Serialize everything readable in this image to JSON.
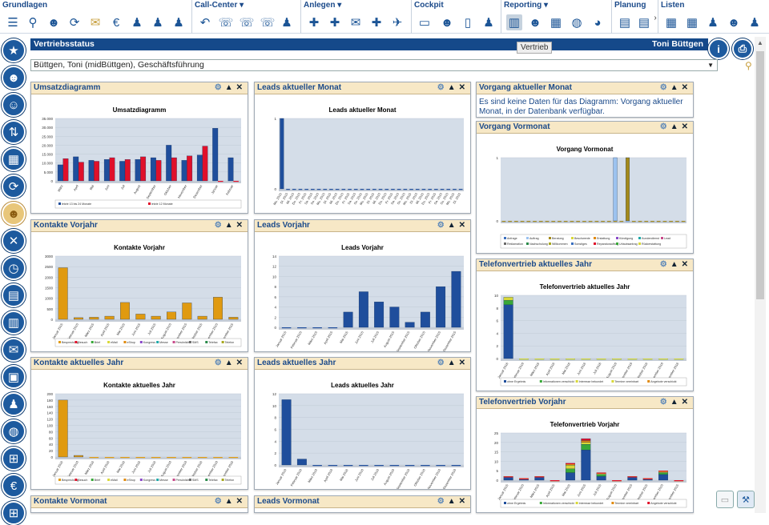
{
  "ribbon": {
    "groups": [
      {
        "title": "Grundlagen",
        "left": 0
      },
      {
        "title": "Call-Center ▾",
        "left": 0
      },
      {
        "title": "Anlegen ▾",
        "left": 0
      },
      {
        "title": "Cockpit",
        "left": 0
      },
      {
        "title": "Reporting ▾",
        "left": 0
      },
      {
        "title": "Planung",
        "left": 0
      },
      {
        "title": "Listen",
        "left": 0
      }
    ]
  },
  "header": {
    "title": "Vertriebsstatus",
    "user": "Toni Büttgen"
  },
  "tooltip": "Vertrieb",
  "selector": {
    "value": "Büttgen, Toni (midBüttgen), Geschäftsführung"
  },
  "panels": {
    "umsatz": {
      "title": "Umsatzdiagramm"
    },
    "leads_akt_monat": {
      "title": "Leads aktueller Monat"
    },
    "vorgang_akt": {
      "title": "Vorgang aktueller Monat",
      "message": "Es sind keine Daten für das Diagramm: Vorgang aktueller Monat, in der Datenbank verfügbar."
    },
    "vorgang_vormonat": {
      "title": "Vorgang Vormonat"
    },
    "kontakte_vorjahr": {
      "title": "Kontakte Vorjahr"
    },
    "leads_vorjahr": {
      "title": "Leads Vorjahr"
    },
    "telefon_akt": {
      "title": "Telefonvertrieb aktuelles Jahr"
    },
    "kontakte_akt": {
      "title": "Kontakte aktuelles Jahr"
    },
    "leads_akt": {
      "title": "Leads aktuelles Jahr"
    },
    "telefon_vorjahr": {
      "title": "Telefonvertrieb Vorjahr"
    },
    "kontakte_vormonat": {
      "title": "Kontakte Vormonat"
    },
    "leads_vormonat": {
      "title": "Leads Vormonat"
    }
  },
  "chart_data": [
    {
      "id": "umsatz",
      "type": "bar",
      "title": "Umsatzdiagramm",
      "ylim": [
        0,
        35000
      ],
      "yticks": [
        "0",
        "5.000",
        "10.000",
        "15.000",
        "20.000",
        "25.000",
        "30.000",
        "35.000"
      ],
      "categories": [
        "März",
        "April",
        "Mai",
        "Juni",
        "Juli",
        "August",
        "September",
        "Oktober",
        "November",
        "Dezember",
        "Januar",
        "Februar"
      ],
      "series": [
        {
          "name": "letzte 13 bis 24 Monate",
          "color": "#1f4e9c",
          "values": [
            9000,
            13500,
            11500,
            12000,
            11000,
            12000,
            13000,
            20000,
            11500,
            14500,
            29500,
            13000
          ]
        },
        {
          "name": "letzte 12 Monate",
          "color": "#e0102a",
          "values": [
            12500,
            10500,
            11000,
            13000,
            12000,
            13500,
            11500,
            13000,
            14000,
            19500,
            0,
            0
          ]
        }
      ]
    },
    {
      "id": "leads_akt_monat",
      "type": "bar",
      "title": "Leads aktueller Monat",
      "ylim": [
        0,
        1
      ],
      "yticks": [
        "0",
        "1"
      ],
      "categories": [
        "Mo. 2015",
        "Di. 2015",
        "Mi. 2015",
        "Do. 2015",
        "Fr. 2015",
        "Sa. 2015",
        "So. 2015",
        "Mo. 2015",
        "Di. 2015",
        "Mi. 2015",
        "Do. 2015",
        "Fr. 2015",
        "Sa. 2015",
        "So. 2015",
        "Mo. 2015",
        "Di. 2015",
        "Mi. 2015",
        "Do. 2015",
        "Fr. 2015",
        "Sa. 2015",
        "So. 2015",
        "Mo. 2015",
        "Di. 2015",
        "Mi. 2015",
        "Do. 2015",
        "Fr. 2015",
        "Sa. 2015",
        "So. 2015",
        "Mo. 2015",
        "Di. 2015"
      ],
      "series": [
        {
          "name": "",
          "color": "#1f4e9c",
          "values": [
            1,
            0,
            0,
            0,
            0,
            0,
            0,
            0,
            0,
            0,
            0,
            0,
            0,
            0,
            0,
            0,
            0,
            0,
            0,
            0,
            0,
            0,
            0,
            0,
            0,
            0,
            0,
            0,
            0,
            0
          ]
        }
      ]
    },
    {
      "id": "vorgang_vormonat",
      "type": "bar",
      "title": "Vorgang Vormonat",
      "ylim": [
        0,
        1
      ],
      "yticks": [
        "0",
        "1"
      ],
      "categories": [
        "",
        "",
        "",
        "",
        "",
        "",
        "",
        "",
        "",
        "",
        "",
        "",
        "",
        "",
        "",
        "",
        "",
        "",
        "",
        "",
        "",
        "",
        "",
        "",
        "",
        "",
        "",
        "",
        "",
        ""
      ],
      "series": [
        {
          "name": "Anfrage",
          "color": "#3b6fbf",
          "values": [
            0,
            0,
            0,
            0,
            0,
            0,
            0,
            0,
            0,
            0,
            0,
            0,
            0,
            0,
            0,
            0,
            0,
            0,
            0,
            0,
            0,
            0,
            0,
            0,
            0,
            0,
            0,
            0,
            0,
            0
          ]
        },
        {
          "name": "Auftrag",
          "color": "#9cc2ef",
          "values": [
            0,
            0,
            0,
            0,
            0,
            0,
            0,
            0,
            0,
            0,
            0,
            0,
            0,
            0,
            0,
            0,
            0,
            0,
            1,
            0,
            0,
            0,
            0,
            0,
            0,
            0,
            0,
            0,
            0,
            0
          ]
        },
        {
          "name": "Beratung",
          "color": "#a58a1a",
          "values": [
            0,
            0,
            0,
            0,
            0,
            0,
            0,
            0,
            0,
            0,
            0,
            0,
            0,
            0,
            0,
            0,
            0,
            0,
            0,
            0,
            1,
            0,
            0,
            0,
            0,
            0,
            0,
            0,
            0,
            0
          ]
        }
      ],
      "legend": [
        "Anfrage",
        "Auftrag",
        "Beratung",
        "Beschwerde",
        "Erstattung",
        "Kündigung",
        "Kundendienst",
        "Lead",
        "Reklamation",
        "Nachschulung",
        "Willkommen",
        "Sonstiges",
        "Reparaturauftrag",
        "Urlaubsantrag",
        "Rückerstattung"
      ]
    },
    {
      "id": "kontakte_vorjahr",
      "type": "bar",
      "title": "Kontakte Vorjahr",
      "ylim": [
        0,
        3000
      ],
      "yticks": [
        "0",
        "500",
        "1000",
        "1500",
        "2000",
        "2500",
        "3000"
      ],
      "categories": [
        "Januar 2015",
        "Februar 2015",
        "März 2015",
        "April 2015",
        "Mai 2015",
        "Juni 2015",
        "Juli 2015",
        "August 2015",
        "September 2015",
        "Oktober 2015",
        "November 2015",
        "Dezember 2015"
      ],
      "series": [
        {
          "name": "",
          "color": "#e09a10",
          "values": [
            2450,
            80,
            100,
            150,
            800,
            250,
            150,
            350,
            780,
            150,
            1050,
            100
          ]
        }
      ],
      "legend": [
        "Besprechung",
        "Besuch",
        "Brief",
        "eMail",
        "eShop",
        "Kongress",
        "Messe",
        "Persönlich",
        "SMS",
        "Telefax",
        "Telefon"
      ]
    },
    {
      "id": "leads_vorjahr",
      "type": "bar",
      "title": "Leads Vorjahr",
      "ylim": [
        0,
        14
      ],
      "yticks": [
        "0",
        "2",
        "4",
        "6",
        "8",
        "10",
        "12",
        "14"
      ],
      "categories": [
        "Januar 2015",
        "Februar 2015",
        "März 2015",
        "April 2015",
        "Mai 2015",
        "Juni 2015",
        "Juli 2015",
        "August 2015",
        "September 2015",
        "Oktober 2015",
        "November 2015",
        "Dezember 2015"
      ],
      "series": [
        {
          "name": "",
          "color": "#1f4e9c",
          "values": [
            0,
            0,
            0,
            0,
            3,
            7,
            5,
            4,
            1,
            3,
            8,
            11
          ]
        }
      ]
    },
    {
      "id": "telefon_akt",
      "type": "bar",
      "title": "Telefonvertrieb aktuelles Jahr",
      "ylim": [
        0,
        10
      ],
      "yticks": [
        "0",
        "2",
        "4",
        "6",
        "8",
        "10"
      ],
      "categories": [
        "Januar 2016",
        "Februar 2016",
        "März 2016",
        "April 2016",
        "Mai 2016",
        "Juni 2016",
        "Juli 2016",
        "August 2016",
        "September 2016",
        "Oktober 2016",
        "November 2016",
        "Dezember 2016"
      ],
      "series": [
        {
          "name": "ohne Ergebnis",
          "color": "#1f4e9c",
          "values": [
            8.5,
            0,
            0,
            0,
            0,
            0,
            0,
            0,
            0,
            0,
            0,
            0
          ]
        },
        {
          "name": "Informationen verschickt",
          "color": "#38a838",
          "values": [
            0.7,
            0,
            0,
            0,
            0,
            0,
            0,
            0,
            0,
            0,
            0,
            0
          ]
        },
        {
          "name": "Interesse bekundet",
          "color": "#d8d838",
          "values": [
            0.5,
            0,
            0,
            0,
            0,
            0,
            0,
            0,
            0,
            0,
            0,
            0
          ]
        }
      ],
      "legend": [
        "ohne Ergebnis",
        "Informationen verschickt",
        "Interesse bekundet",
        "Termine vereinbart",
        "Angebote verschickt"
      ]
    },
    {
      "id": "kontakte_akt",
      "type": "bar",
      "title": "Kontakte aktuelles Jahr",
      "ylim": [
        0,
        200
      ],
      "yticks": [
        "0",
        "20",
        "40",
        "60",
        "80",
        "100",
        "120",
        "140",
        "160",
        "180",
        "200"
      ],
      "categories": [
        "Januar 2016",
        "Februar 2016",
        "März 2016",
        "April 2016",
        "Mai 2016",
        "Juni 2016",
        "Juli 2016",
        "August 2016",
        "September 2016",
        "Oktober 2016",
        "November 2016",
        "Dezember 2016"
      ],
      "series": [
        {
          "name": "",
          "color": "#e09a10",
          "values": [
            180,
            5,
            0,
            0,
            0,
            0,
            0,
            0,
            0,
            0,
            0,
            0
          ]
        }
      ],
      "legend": [
        "Besprechung",
        "Besuch",
        "Brief",
        "eMail",
        "eShop",
        "Kongress",
        "Messe",
        "Persönlich",
        "SMS",
        "Telefax",
        "Telefon"
      ]
    },
    {
      "id": "leads_akt",
      "type": "bar",
      "title": "Leads aktuelles Jahr",
      "ylim": [
        0,
        12
      ],
      "yticks": [
        "0",
        "2",
        "4",
        "6",
        "8",
        "10",
        "12"
      ],
      "categories": [
        "Januar 2016",
        "Februar 2016",
        "März 2016",
        "April 2016",
        "Mai 2016",
        "Juni 2016",
        "Juli 2016",
        "August 2016",
        "September 2016",
        "Oktober 2016",
        "November 2016",
        "Dezember 2016"
      ],
      "series": [
        {
          "name": "",
          "color": "#1f4e9c",
          "values": [
            11,
            1,
            0,
            0,
            0,
            0,
            0,
            0,
            0,
            0,
            0,
            0
          ]
        }
      ]
    },
    {
      "id": "telefon_vorjahr",
      "type": "bar",
      "title": "Telefonvertrieb Vorjahr",
      "ylim": [
        0,
        25
      ],
      "yticks": [
        "0",
        "5",
        "10",
        "15",
        "20",
        "25"
      ],
      "categories": [
        "Januar 2015",
        "Februar 2015",
        "März 2015",
        "April 2015",
        "Mai 2015",
        "Juni 2015",
        "Juli 2015",
        "August 2015",
        "September 2015",
        "Oktober 2015",
        "November 2015",
        "Dezember 2015"
      ],
      "series": [
        {
          "name": "ohne Ergebnis",
          "color": "#1f4e9c",
          "values": [
            2,
            1,
            2,
            0,
            4,
            16,
            2,
            0,
            2,
            1,
            3,
            0
          ]
        },
        {
          "name": "Informationen verschickt",
          "color": "#38a838",
          "values": [
            0,
            0,
            0,
            0,
            2,
            3,
            1,
            0,
            0,
            0,
            1,
            0
          ]
        },
        {
          "name": "Interesse bekundet",
          "color": "#d8d838",
          "values": [
            0,
            0,
            0,
            0,
            2,
            1,
            1,
            0,
            0,
            0,
            1,
            0
          ]
        },
        {
          "name": "Termine vereinbart",
          "color": "#e08a10",
          "values": [
            0,
            0,
            0,
            0,
            1,
            1,
            0,
            0,
            0,
            0,
            0,
            0
          ]
        },
        {
          "name": "Angebote verschickt",
          "color": "#e0102a",
          "values": [
            0,
            0,
            0,
            0,
            0,
            1,
            0,
            0,
            0,
            0,
            0,
            0
          ]
        }
      ]
    }
  ],
  "sidebar_icons": [
    "star-icon",
    "user-icon",
    "user-circle-icon",
    "arrows-icon",
    "building-icon",
    "sync-icon",
    "group-icon",
    "tools-icon",
    "clock-icon",
    "calendar-icon",
    "document-icon",
    "mail-icon",
    "car-icon",
    "people-icon",
    "globe-icon",
    "cart-icon",
    "euro-icon",
    "org-chart-icon"
  ]
}
